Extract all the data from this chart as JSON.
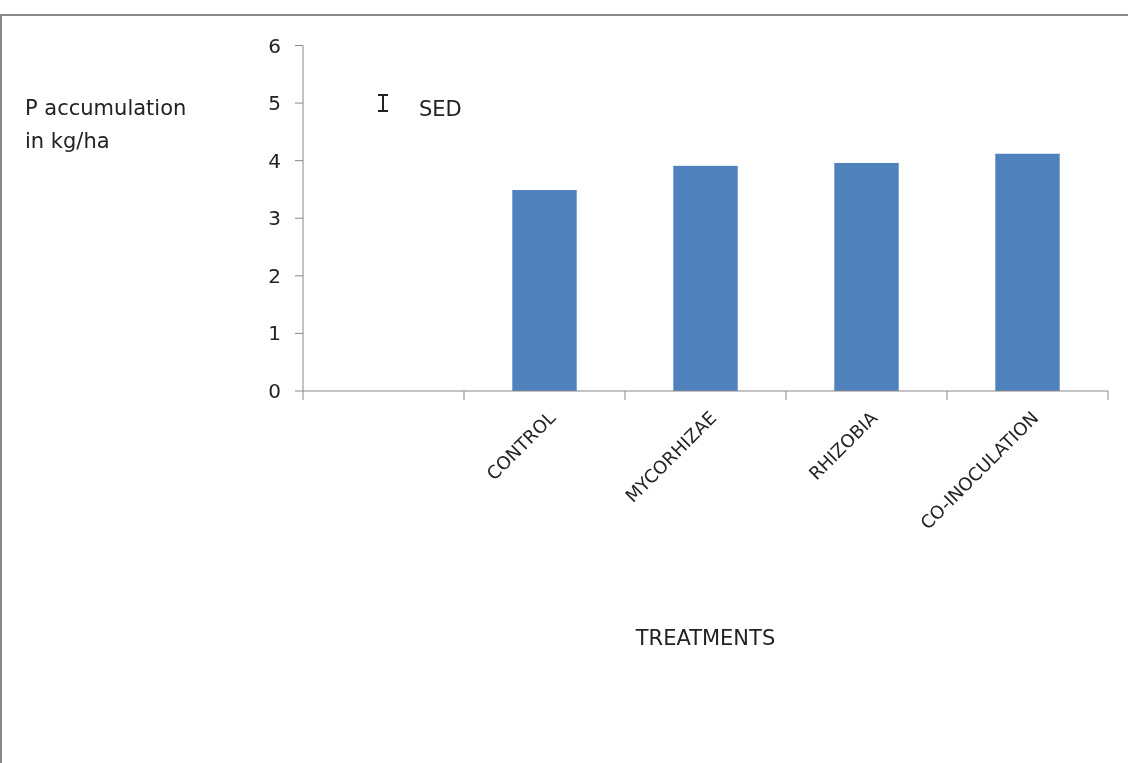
{
  "chart_data": {
    "type": "bar",
    "categories": [
      null,
      "CONTROL",
      "MYCORHIZAE",
      "RHIZOBIA",
      "CO-INOCULATION"
    ],
    "values": [
      null,
      3.49,
      3.91,
      3.96,
      4.12
    ],
    "color": "#4f81bd",
    "ylim": [
      0,
      6
    ],
    "yticks": [
      0,
      1,
      2,
      3,
      4,
      5,
      6
    ],
    "ylabel": "P accumulation in kg/ha",
    "xlabel": "TREATMENTS",
    "annotations": [
      "SED"
    ],
    "grid": false
  }
}
